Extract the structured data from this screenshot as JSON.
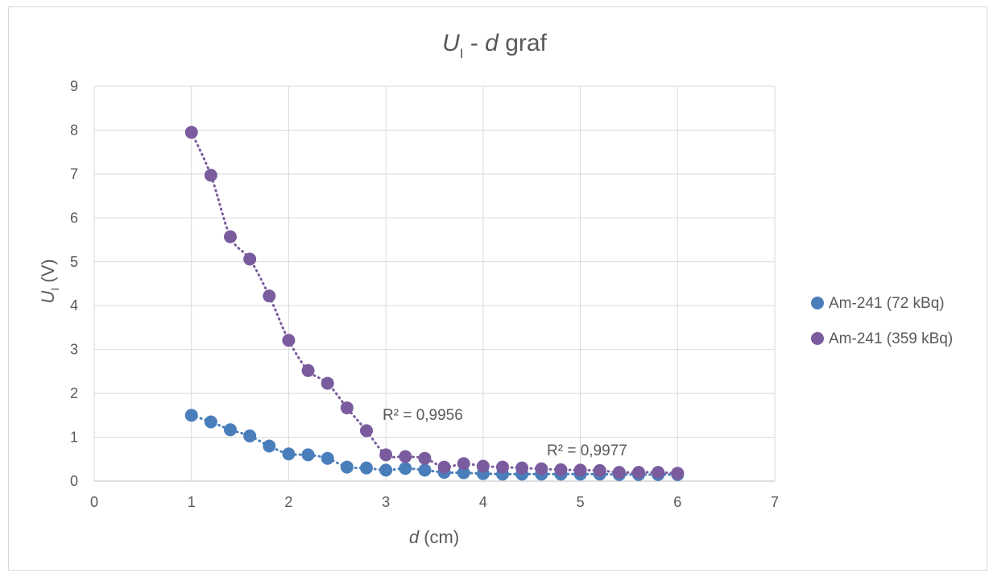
{
  "chart_data": {
    "type": "scatter",
    "title": {
      "symbol": "U",
      "subscript": "I",
      "rest": " - ",
      "var": "d",
      "suffix": " graf"
    },
    "xlabel": {
      "var": "d",
      "unit": " (cm)"
    },
    "ylabel": {
      "symbol": "U",
      "subscript": "I",
      "unit": " (V)"
    },
    "xlim": [
      0,
      7
    ],
    "ylim": [
      0,
      9
    ],
    "x_ticks": [
      "0",
      "1",
      "2",
      "3",
      "4",
      "5",
      "6",
      "7"
    ],
    "y_ticks": [
      "0",
      "1",
      "2",
      "3",
      "4",
      "5",
      "6",
      "7",
      "8",
      "9"
    ],
    "grid": true,
    "legend_position": "right",
    "series": [
      {
        "name": "Am-241 (72 kBq)",
        "color": "#4a7ebb",
        "trendline": "dotted",
        "r2_label": "R² = 0,9977",
        "x": [
          1.0,
          1.2,
          1.4,
          1.6,
          1.8,
          2.0,
          2.2,
          2.4,
          2.6,
          2.8,
          3.0,
          3.2,
          3.4,
          3.6,
          3.8,
          4.0,
          4.2,
          4.4,
          4.6,
          4.8,
          5.0,
          5.2,
          5.4,
          5.6,
          5.8,
          6.0
        ],
        "y": [
          1.5,
          1.35,
          1.17,
          1.03,
          0.8,
          0.62,
          0.6,
          0.52,
          0.32,
          0.3,
          0.25,
          0.29,
          0.25,
          0.2,
          0.19,
          0.17,
          0.16,
          0.16,
          0.16,
          0.16,
          0.16,
          0.16,
          0.15,
          0.15,
          0.15,
          0.15
        ]
      },
      {
        "name": "Am-241 (359 kBq)",
        "color": "#7a5c9e",
        "trendline": "dotted",
        "r2_label": "R² = 0,9956",
        "x": [
          1.0,
          1.2,
          1.4,
          1.6,
          1.8,
          2.0,
          2.2,
          2.4,
          2.6,
          2.8,
          3.0,
          3.2,
          3.4,
          3.6,
          3.8,
          4.0,
          4.2,
          4.4,
          4.6,
          4.8,
          5.0,
          5.2,
          5.4,
          5.6,
          5.8,
          6.0
        ],
        "y": [
          7.95,
          6.97,
          5.57,
          5.06,
          4.22,
          3.21,
          2.52,
          2.23,
          1.67,
          1.15,
          0.6,
          0.56,
          0.52,
          0.32,
          0.4,
          0.34,
          0.32,
          0.3,
          0.28,
          0.26,
          0.25,
          0.24,
          0.2,
          0.2,
          0.2,
          0.18
        ]
      }
    ]
  }
}
